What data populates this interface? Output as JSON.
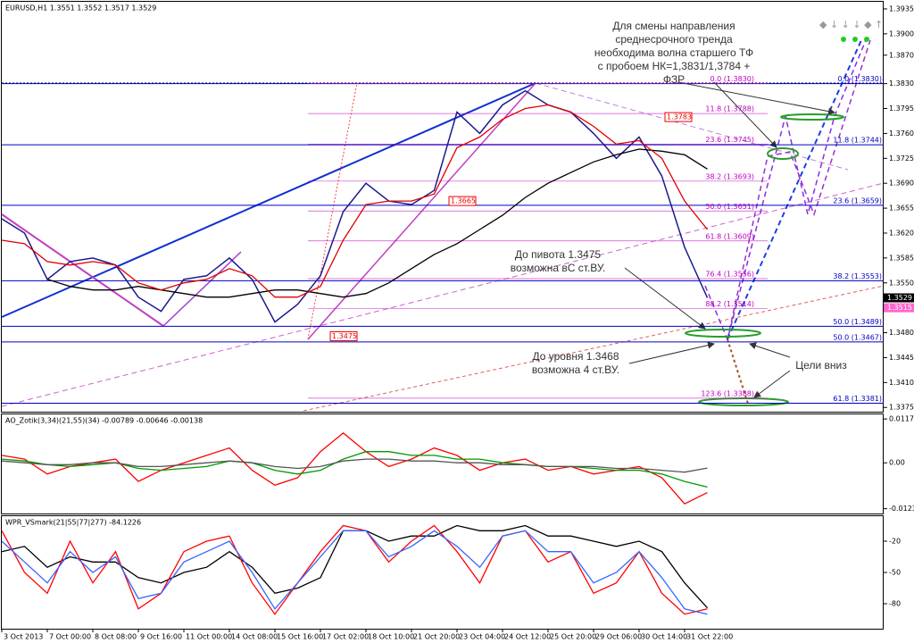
{
  "chart_data": [
    {
      "type": "line",
      "title": "EURUSD,H1  1.3551 1.3552 1.3517 1.3529",
      "categories": [
        "3 Oct 2013",
        null,
        "7 Oct 00:00",
        null,
        "8 Oct 08:00",
        null,
        "9 Oct 16:00",
        null,
        "11 Oct 00:00",
        null,
        "14 Oct 08:00",
        null,
        "15 Oct 16:00",
        null,
        "17 Oct 02:00",
        null,
        "18 Oct 10:00",
        null,
        "21 Oct 20:00",
        null,
        "23 Oct 04:00",
        null,
        "24 Oct 12:00",
        null,
        "25 Oct 20:00",
        null,
        "29 Oct 06:00",
        null,
        "30 Oct 14:00",
        null,
        "31 Oct 22:00",
        null
      ],
      "series": [
        {
          "name": "Close",
          "color": "#1a1a8c",
          "values": [
            1.364,
            1.362,
            1.3555,
            1.358,
            1.3585,
            1.3575,
            1.353,
            1.351,
            1.3555,
            1.356,
            1.3585,
            1.3555,
            1.3495,
            1.352,
            1.356,
            1.365,
            1.369,
            1.3665,
            1.366,
            1.368,
            1.379,
            1.376,
            1.38,
            1.382,
            1.38,
            1.379,
            1.376,
            1.3725,
            1.3755,
            1.37,
            1.36,
            1.3529
          ]
        },
        {
          "name": "MA slow",
          "color": "#000000",
          "values": [
            null,
            null,
            1.3555,
            1.3545,
            1.354,
            1.354,
            1.3545,
            1.354,
            1.3535,
            1.353,
            1.353,
            1.3535,
            1.354,
            1.354,
            1.3535,
            1.353,
            1.3535,
            1.355,
            1.357,
            1.359,
            1.3605,
            1.3625,
            1.3645,
            1.367,
            1.369,
            1.3705,
            1.372,
            1.373,
            1.3738,
            1.3735,
            1.373,
            1.371
          ]
        },
        {
          "name": "MA fast",
          "color": "#e00000",
          "values": [
            1.361,
            1.3605,
            1.358,
            1.3575,
            1.358,
            1.3575,
            1.355,
            1.354,
            1.355,
            1.3555,
            1.357,
            1.356,
            1.353,
            1.353,
            1.3545,
            1.361,
            1.366,
            1.3665,
            1.3665,
            1.3675,
            1.374,
            1.3755,
            1.378,
            1.3795,
            1.38,
            1.379,
            1.377,
            1.3745,
            1.375,
            1.3725,
            1.3665,
            1.3625
          ]
        }
      ],
      "ylim": [
        1.3369,
        1.3945
      ],
      "yticks": [
        1.3935,
        {
          "value": 1.39,
          "label": "1.3900"
        },
        {
          "value": 1.387,
          "label": "1.3870"
        },
        {
          "value": 1.383,
          "label": "1.3830"
        },
        1.3795,
        {
          "value": 1.376,
          "label": "1.3760"
        },
        1.3725,
        {
          "value": 1.369,
          "label": "1.3690"
        },
        1.3655,
        {
          "value": 1.362,
          "label": "1.3620"
        },
        1.3585,
        {
          "value": 1.355,
          "label": "1.3550"
        },
        {
          "value": 1.348,
          "label": "1.3480"
        },
        1.3445,
        {
          "value": 1.341,
          "label": "1.3410"
        },
        1.3375
      ],
      "price_tags": [
        {
          "value": 1.3529,
          "label": "1.3529",
          "color": "#000000"
        },
        {
          "value": 1.3515,
          "label": "1.3515",
          "color": "#ff66cc"
        }
      ],
      "pivot_tags": [
        {
          "value": 1.3783,
          "label": "1.3783"
        },
        {
          "value": 1.3665,
          "label": "1.3665"
        },
        {
          "value": 1.3475,
          "label": "1.3475"
        }
      ],
      "fib_left": {
        "color": "#c000c0",
        "levels": [
          {
            "value": 1.383,
            "label": "0.0 (1.3830)"
          },
          {
            "value": 1.3788,
            "label": "11.8 (1.3788)"
          },
          {
            "value": 1.3745,
            "label": "23.6 (1.3745)"
          },
          {
            "value": 1.3693,
            "label": "38.2 (1.3693)"
          },
          {
            "value": 1.3651,
            "label": "50.0 (1.3651)"
          },
          {
            "value": 1.3609,
            "label": "61.8 (1.3609)"
          },
          {
            "value": 1.3556,
            "label": "76.4 (1.3556)"
          },
          {
            "value": 1.3514,
            "label": "88.2 (1.3514)"
          },
          {
            "value": 1.3388,
            "label": "123.6 (1.3388)"
          }
        ]
      },
      "fib_right": {
        "color": "#0000c0",
        "levels": [
          {
            "value": 1.383,
            "label": "0.0 (1.3830)"
          },
          {
            "value": 1.3744,
            "label": "11.8 (1.3744)"
          },
          {
            "value": 1.3659,
            "label": "23.6 (1.3659)"
          },
          {
            "value": 1.3553,
            "label": "38.2 (1.3553)"
          },
          {
            "value": 1.3489,
            "label": "50.0 (1.3489)"
          },
          {
            "value": 1.3467,
            "label": "50.0 (1.3467)"
          },
          {
            "value": 1.3381,
            "label": "61.8 (1.3381)"
          }
        ]
      },
      "annotations": [
        [
          "Для смены направления",
          "среднесрочного тренда",
          "необходима волна старшего ТФ",
          "с пробоем НК=1,3831/1,3784 +",
          "ФЗР"
        ],
        [
          "До пивота 1.3475",
          "возможна вС ст.ВУ."
        ],
        [
          "До уровня 1.3468",
          "возможна 4 ст.ВУ."
        ],
        [
          "Цели вниз"
        ]
      ]
    },
    {
      "type": "line",
      "title": "AO_Zotik(3,34)(21,55)(34) -0.00789 -0.00646 -0.00138",
      "series": [
        {
          "name": "AO",
          "color": "#ff0000",
          "values": [
            0.002,
            0.001,
            -0.003,
            -0.001,
            0.0,
            0.001,
            -0.005,
            -0.002,
            0.0,
            0.002,
            0.004,
            -0.002,
            -0.006,
            -0.004,
            0.003,
            0.008,
            0.003,
            -0.001,
            0.001,
            0.004,
            0.002,
            -0.002,
            0.0,
            0.001,
            -0.002,
            -0.001,
            -0.003,
            -0.002,
            -0.001,
            -0.004,
            -0.011,
            -0.008
          ]
        },
        {
          "name": "Signal",
          "color": "#009900",
          "values": [
            0.001,
            0.0005,
            -0.0005,
            -0.001,
            -0.0005,
            0.0,
            -0.0015,
            -0.002,
            -0.0015,
            -0.001,
            0.0005,
            0.0,
            -0.002,
            -0.003,
            -0.002,
            0.001,
            0.003,
            0.003,
            0.002,
            0.002,
            0.001,
            0.001,
            0.0,
            -0.0005,
            -0.001,
            -0.001,
            -0.0015,
            -0.002,
            -0.002,
            -0.003,
            -0.005,
            -0.0065
          ]
        },
        {
          "name": "Base",
          "color": "#555555",
          "values": [
            0.0005,
            0.0,
            -0.0005,
            -0.0005,
            0.0,
            0.0,
            -0.001,
            -0.001,
            -0.0005,
            0.0,
            0.0005,
            0.0,
            -0.001,
            -0.0015,
            -0.001,
            0.0005,
            0.001,
            0.001,
            0.0005,
            0.0005,
            0.0,
            0.0,
            -0.0005,
            -0.0005,
            -0.001,
            -0.001,
            -0.001,
            -0.0015,
            -0.0015,
            -0.002,
            -0.0025,
            -0.0014
          ]
        }
      ],
      "ylim": [
        -0.0136,
        0.013
      ],
      "yticks": [
        0.01177,
        {
          "value": 0,
          "label": "0.00"
        },
        -0.01231
      ]
    },
    {
      "type": "line",
      "title": "WPR_VSmark(21|55|77|277) -84.1226",
      "series": [
        {
          "name": "WPR 277",
          "color": "#000000",
          "values": [
            -30,
            -25,
            -45,
            -35,
            -40,
            -40,
            -55,
            -60,
            -50,
            -45,
            -30,
            -45,
            -70,
            -65,
            -55,
            -10,
            -10,
            -20,
            -15,
            -15,
            -5,
            -10,
            -10,
            -5,
            -15,
            -15,
            -20,
            -25,
            -20,
            -30,
            -60,
            -84
          ]
        },
        {
          "name": "WPR 21",
          "color": "#ff0000",
          "values": [
            -10,
            -50,
            -70,
            -20,
            -60,
            -30,
            -85,
            -70,
            -30,
            -20,
            -15,
            -60,
            -90,
            -60,
            -30,
            -5,
            -10,
            -40,
            -20,
            -5,
            -30,
            -60,
            -15,
            -10,
            -40,
            -30,
            -70,
            -60,
            -30,
            -70,
            -90,
            -85
          ]
        },
        {
          "name": "WPR 55",
          "color": "#3366ff",
          "values": [
            -20,
            -40,
            -60,
            -30,
            -50,
            -35,
            -75,
            -70,
            -40,
            -30,
            -20,
            -50,
            -85,
            -60,
            -35,
            -10,
            -10,
            -35,
            -25,
            -10,
            -25,
            -45,
            -15,
            -10,
            -30,
            -30,
            -60,
            -50,
            -30,
            -55,
            -85,
            -90
          ]
        }
      ],
      "ylim": [
        -104,
        4
      ],
      "yticks": [
        -20,
        -50,
        -80
      ]
    }
  ]
}
